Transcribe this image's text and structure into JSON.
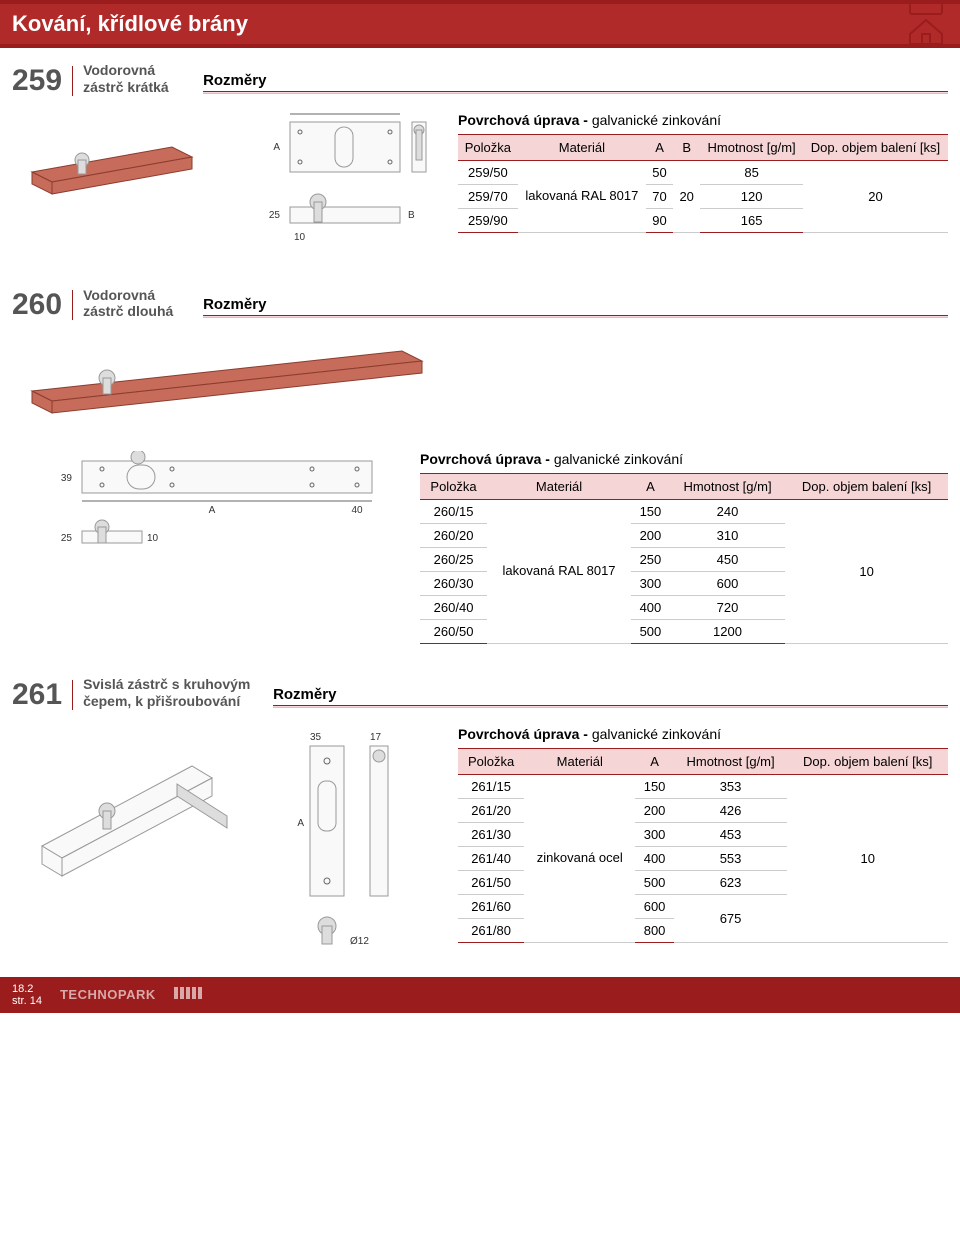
{
  "header": {
    "title": "Kování, křídlové brány"
  },
  "labels": {
    "rozmery": "Rozměry",
    "surface_prefix": "Povrchová úprava - ",
    "surface_galv": "galvanické zinkování"
  },
  "table_headers": {
    "polozka": "Položka",
    "material": "Materiál",
    "a": "A",
    "b": "B",
    "hmotnost": "Hmotnost [g/m]",
    "dop": "Dop. objem balení [ks]"
  },
  "sections": [
    {
      "num": "259",
      "title": "Vodorovná zástrč krátká",
      "columns": [
        "polozka",
        "material",
        "a",
        "b",
        "hmotnost",
        "dop"
      ],
      "material": "lakovaná RAL 8017",
      "dop": "20",
      "rows": [
        {
          "polozka": "259/50",
          "a": "50",
          "b": "",
          "hmotnost": "85"
        },
        {
          "polozka": "259/70",
          "a": "70",
          "b": "20",
          "hmotnost": "120"
        },
        {
          "polozka": "259/90",
          "a": "90",
          "b": "",
          "hmotnost": "165"
        }
      ]
    },
    {
      "num": "260",
      "title": "Vodorovná zástrč dlouhá",
      "columns": [
        "polozka",
        "material",
        "a",
        "hmotnost",
        "dop"
      ],
      "material": "lakovaná RAL 8017",
      "dop": "10",
      "rows": [
        {
          "polozka": "260/15",
          "a": "150",
          "hmotnost": "240"
        },
        {
          "polozka": "260/20",
          "a": "200",
          "hmotnost": "310"
        },
        {
          "polozka": "260/25",
          "a": "250",
          "hmotnost": "450"
        },
        {
          "polozka": "260/30",
          "a": "300",
          "hmotnost": "600"
        },
        {
          "polozka": "260/40",
          "a": "400",
          "hmotnost": "720"
        },
        {
          "polozka": "260/50",
          "a": "500",
          "hmotnost": "1200"
        }
      ]
    },
    {
      "num": "261",
      "title": "Svislá zástrč s kruhovým čepem, k přišroubování",
      "columns": [
        "polozka",
        "material",
        "a",
        "hmotnost",
        "dop"
      ],
      "material": "zinkovaná ocel",
      "dop": "10",
      "rows": [
        {
          "polozka": "261/15",
          "a": "150",
          "hmotnost": "353"
        },
        {
          "polozka": "261/20",
          "a": "200",
          "hmotnost": "426"
        },
        {
          "polozka": "261/30",
          "a": "300",
          "hmotnost": "453"
        },
        {
          "polozka": "261/40",
          "a": "400",
          "hmotnost": "553"
        },
        {
          "polozka": "261/50",
          "a": "500",
          "hmotnost": "623"
        },
        {
          "polozka": "261/60",
          "a": "600",
          "hmotnost": "675",
          "hm_span": "2"
        },
        {
          "polozka": "261/80",
          "a": "800",
          "hmotnost": ""
        }
      ]
    }
  ],
  "footer": {
    "ref": "18.2",
    "page": "str. 14",
    "brand": "TECHNOPARK"
  },
  "colors": {
    "header_bg": "#9b1c1c",
    "th_bg": "#f5d5d5",
    "rule": "#9b1c1c"
  }
}
